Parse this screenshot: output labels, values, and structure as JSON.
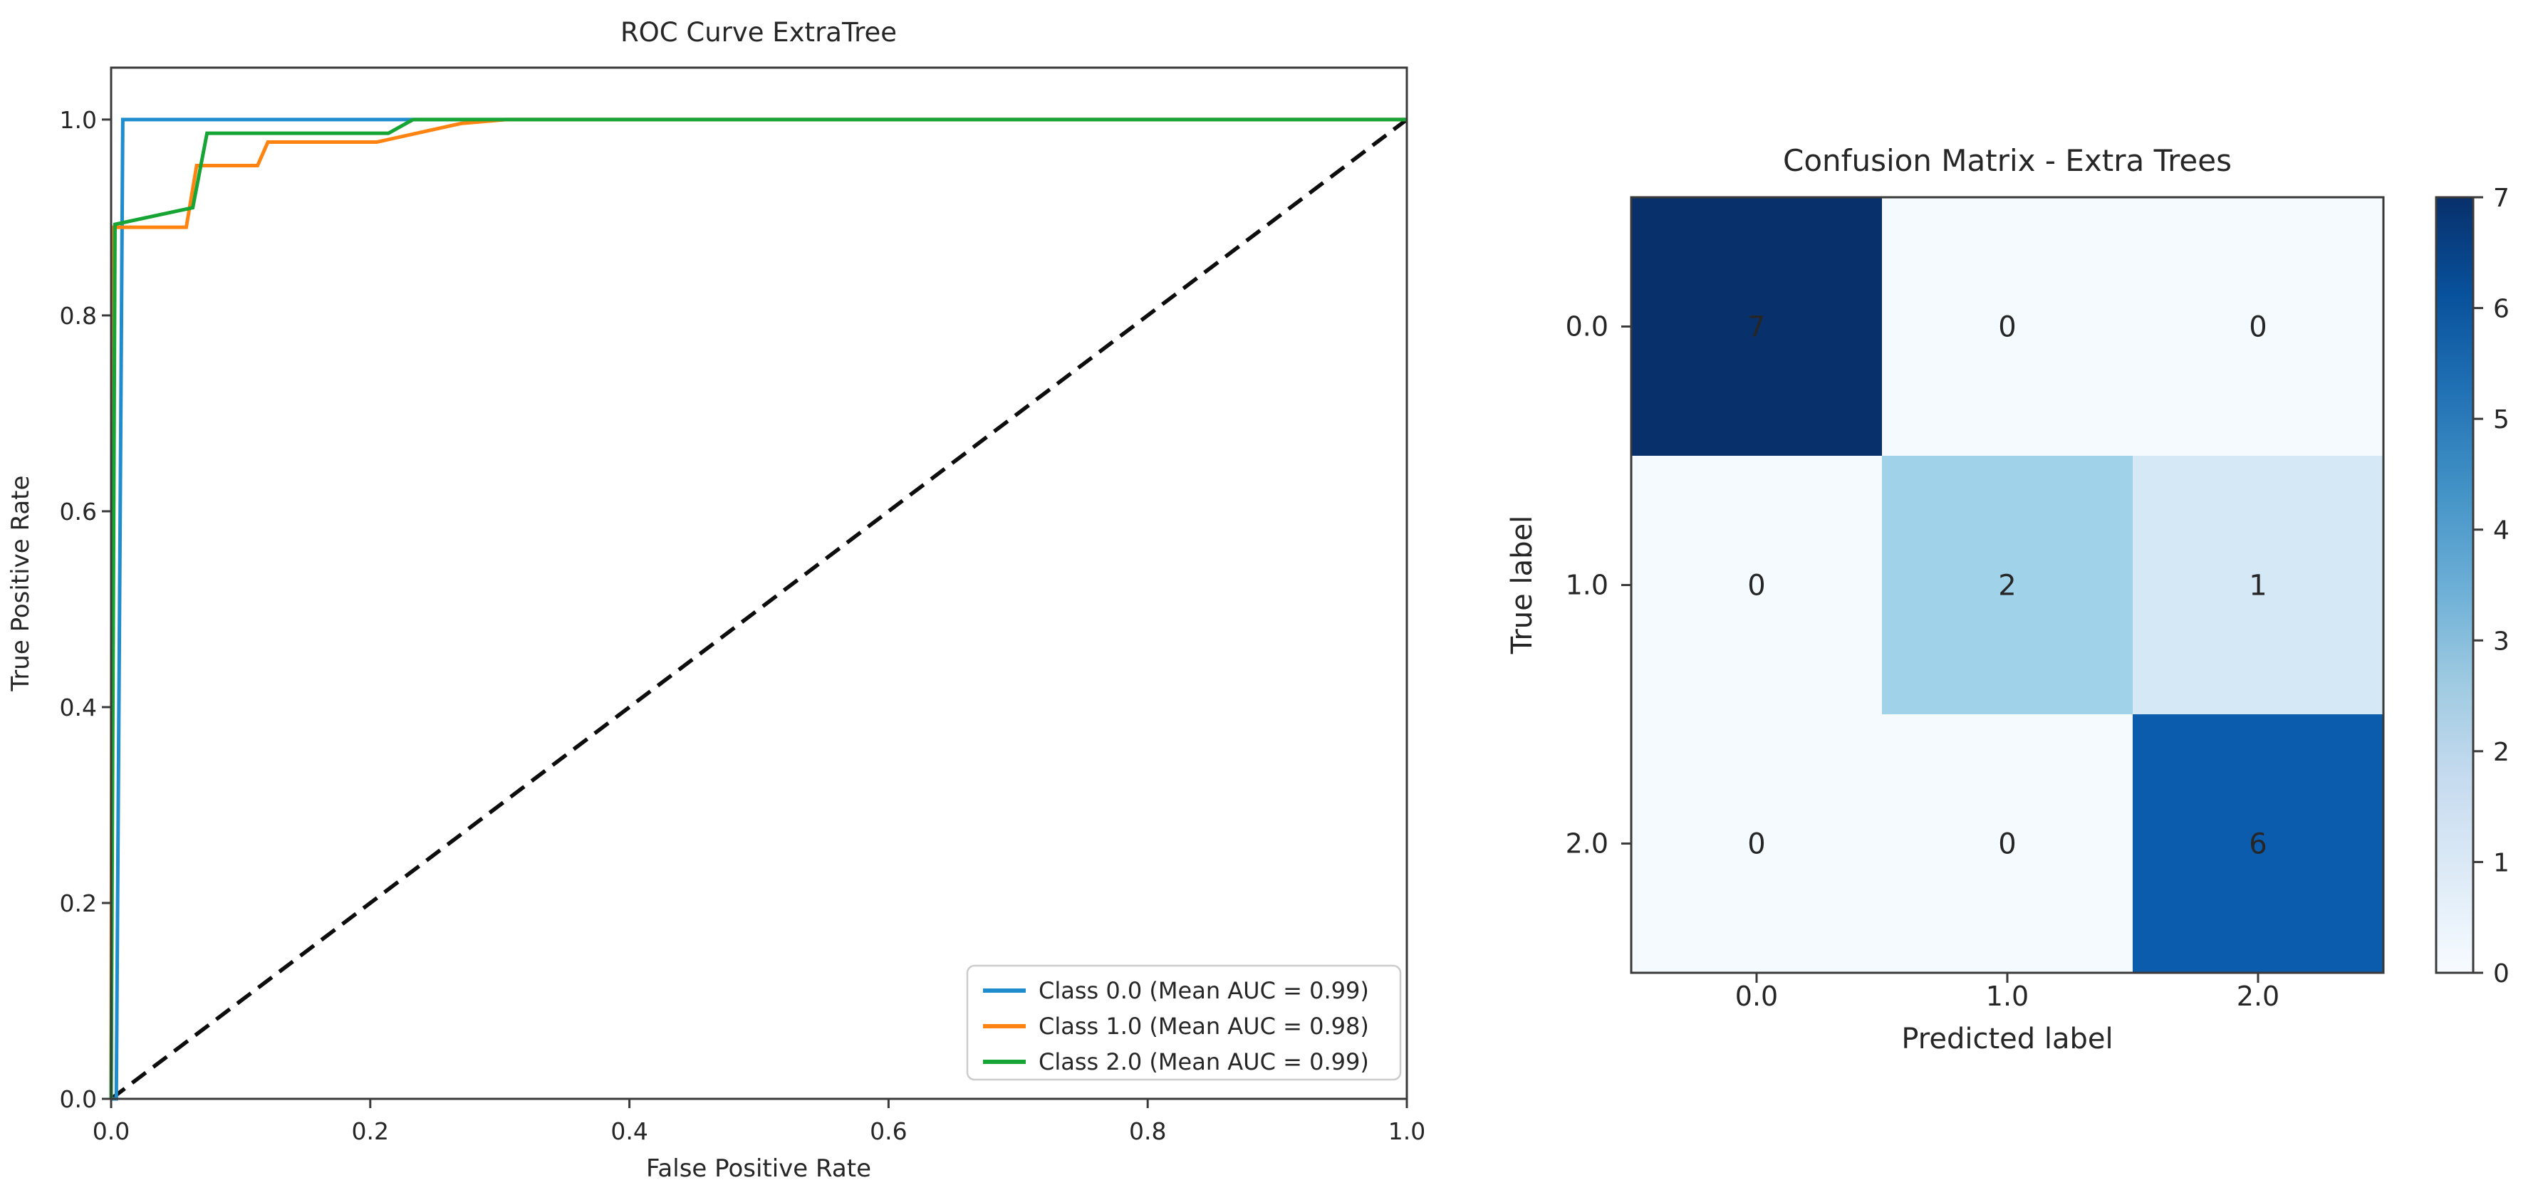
{
  "figure": {
    "background": "#ffffff",
    "spine_color": "#3a3a3a",
    "tick_color": "#262626"
  },
  "chart_data": [
    {
      "type": "line",
      "title": "ROC Curve ExtraTree",
      "xlabel": "False Positive Rate",
      "ylabel": "True Positive Rate",
      "xlim": [
        0,
        1
      ],
      "ylim": [
        0,
        1.053
      ],
      "xticks": [
        0.0,
        0.2,
        0.4,
        0.6,
        0.8,
        1.0
      ],
      "xtick_labels": [
        "0.0",
        "0.2",
        "0.4",
        "0.6",
        "0.8",
        "1.0"
      ],
      "yticks": [
        0.0,
        0.2,
        0.4,
        0.6,
        0.8,
        1.0
      ],
      "ytick_labels": [
        "0.0",
        "0.2",
        "0.4",
        "0.6",
        "0.8",
        "1.0"
      ],
      "grid": false,
      "legend_position": "lower right",
      "series": [
        {
          "name": "Class 0.0 (Mean AUC = 0.99)",
          "auc": "0.99",
          "color": "#1f8ccd",
          "points": [
            [
              0,
              0
            ],
            [
              0.004,
              0
            ],
            [
              0.009,
              1.0
            ],
            [
              1.0,
              1.0
            ]
          ]
        },
        {
          "name": "Class 1.0 (Mean AUC = 0.98)",
          "auc": "0.98",
          "color": "#ff8310",
          "points": [
            [
              0,
              0
            ],
            [
              0.001,
              0.89
            ],
            [
              0.058,
              0.89
            ],
            [
              0.066,
              0.953
            ],
            [
              0.113,
              0.953
            ],
            [
              0.121,
              0.977
            ],
            [
              0.205,
              0.977
            ],
            [
              0.27,
              0.996
            ],
            [
              0.305,
              1.0
            ],
            [
              1.0,
              1.0
            ]
          ]
        },
        {
          "name": "Class 2.0 (Mean AUC = 0.99)",
          "auc": "0.99",
          "color": "#16a434",
          "points": [
            [
              0,
              0
            ],
            [
              0.003,
              0.893
            ],
            [
              0.063,
              0.91
            ],
            [
              0.074,
              0.986
            ],
            [
              0.214,
              0.986
            ],
            [
              0.233,
              1.0
            ],
            [
              1.0,
              1.0
            ]
          ]
        }
      ],
      "reference_line": {
        "name": "chance-diagonal",
        "color": "#0d0d0d",
        "dashed": true,
        "points": [
          [
            0,
            0
          ],
          [
            1,
            1
          ]
        ]
      }
    },
    {
      "type": "heatmap",
      "title": "Confusion Matrix - Extra Trees",
      "xlabel": "Predicted label",
      "ylabel": "True label",
      "x_categories": [
        "0.0",
        "1.0",
        "2.0"
      ],
      "y_categories": [
        "0.0",
        "1.0",
        "2.0"
      ],
      "matrix": [
        [
          7,
          0,
          0
        ],
        [
          0,
          2,
          1
        ],
        [
          0,
          0,
          6
        ]
      ],
      "cell_colors": [
        [
          "#08306b",
          "#f4fafe",
          "#f4fafe"
        ],
        [
          "#f4fafe",
          "#a0d3ea",
          "#d4e8f6"
        ],
        [
          "#f4fafe",
          "#f4fafe",
          "#0b5cad"
        ]
      ],
      "cell_text_colors": [
        [
          "#d3e6f4",
          "#0f5aa3",
          "#0f5aa3"
        ],
        [
          "#0f5aa3",
          "#0b4a8c",
          "#0f5aa3"
        ],
        [
          "#0f5aa3",
          "#0f5aa3",
          "#cfe4f3"
        ]
      ],
      "colorbar": {
        "min": 0,
        "max": 7,
        "tick_labels": [
          "0",
          "1",
          "2",
          "3",
          "4",
          "5",
          "6",
          "7"
        ],
        "gradient_stops": [
          "#f7fbff",
          "#deebf7",
          "#c6dbef",
          "#9ecae1",
          "#6baed6",
          "#4292c6",
          "#2171b5",
          "#08519c",
          "#08306b"
        ]
      }
    }
  ]
}
